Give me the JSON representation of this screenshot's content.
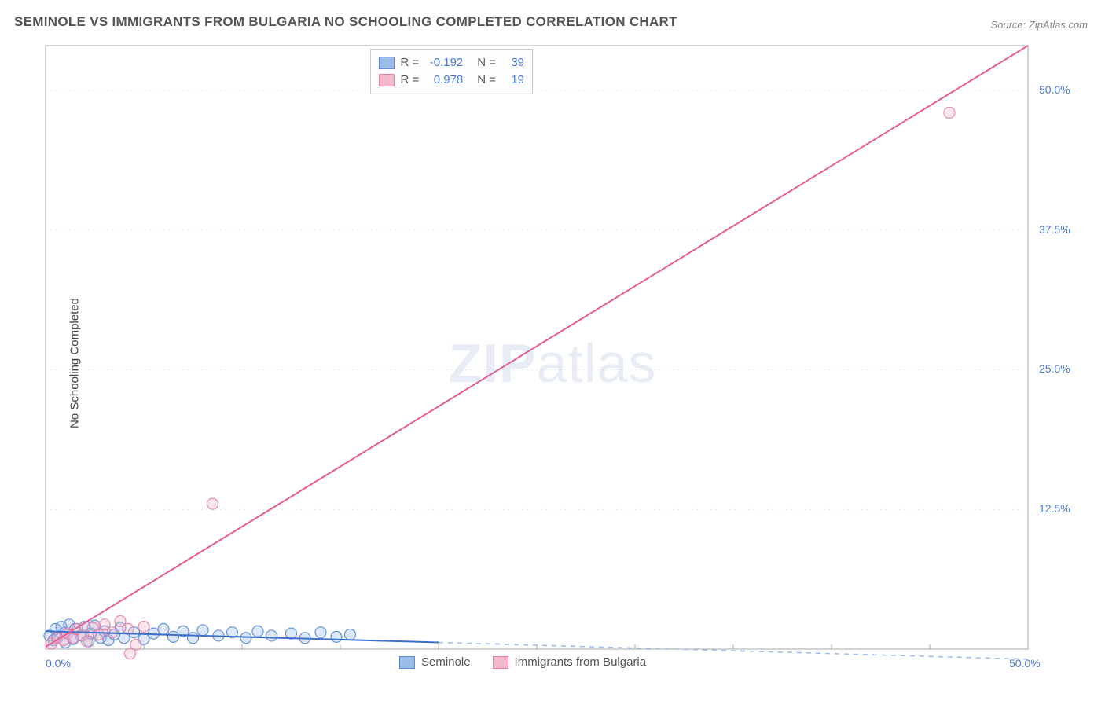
{
  "title": "SEMINOLE VS IMMIGRANTS FROM BULGARIA NO SCHOOLING COMPLETED CORRELATION CHART",
  "source": "Source: ZipAtlas.com",
  "ylabel": "No Schooling Completed",
  "watermark_a": "ZIP",
  "watermark_b": "atlas",
  "chart": {
    "type": "scatter-correlation",
    "background_color": "#ffffff",
    "border_color": "#aaaaaa",
    "grid_color": "#e8e8e8",
    "grid_dash": "2 4",
    "axis_label_color": "#4a7bd0",
    "xlim": [
      0,
      50
    ],
    "ylim": [
      0,
      54
    ],
    "x_ticks": [
      0,
      50
    ],
    "x_tick_labels": [
      "0.0%",
      "50.0%"
    ],
    "x_minor_ticks": [
      5,
      10,
      15,
      20,
      25,
      30,
      35,
      40,
      45
    ],
    "y_ticks": [
      12.5,
      25.0,
      37.5,
      50.0
    ],
    "y_tick_labels": [
      "12.5%",
      "25.0%",
      "37.5%",
      "50.0%"
    ],
    "marker_radius": 7,
    "marker_opacity": 0.35,
    "line_width": 2,
    "series": [
      {
        "name": "Seminole",
        "fill_color": "#9bbce8",
        "stroke_color": "#5a8ad4",
        "line_color": "#3b6fc9",
        "R": "-0.192",
        "N": "39",
        "trend": {
          "x1": 0,
          "y1": 1.6,
          "x2": 20,
          "y2": 0.6,
          "extend_to_x": 50,
          "extend_dash": "6 6",
          "extend_color": "#9bbce8"
        },
        "points": [
          [
            0.2,
            1.2
          ],
          [
            0.4,
            0.8
          ],
          [
            0.5,
            1.8
          ],
          [
            0.6,
            1.0
          ],
          [
            0.8,
            2.0
          ],
          [
            1.0,
            0.6
          ],
          [
            1.0,
            1.5
          ],
          [
            1.2,
            2.2
          ],
          [
            1.4,
            0.9
          ],
          [
            1.5,
            1.8
          ],
          [
            1.8,
            1.2
          ],
          [
            2.0,
            2.0
          ],
          [
            2.2,
            0.7
          ],
          [
            2.3,
            1.4
          ],
          [
            2.5,
            2.1
          ],
          [
            2.8,
            1.0
          ],
          [
            3.0,
            1.6
          ],
          [
            3.2,
            0.8
          ],
          [
            3.5,
            1.3
          ],
          [
            3.8,
            1.9
          ],
          [
            4.0,
            1.0
          ],
          [
            4.5,
            1.5
          ],
          [
            5.0,
            0.9
          ],
          [
            5.5,
            1.4
          ],
          [
            6.0,
            1.8
          ],
          [
            6.5,
            1.1
          ],
          [
            7.0,
            1.6
          ],
          [
            7.5,
            1.0
          ],
          [
            8.0,
            1.7
          ],
          [
            8.8,
            1.2
          ],
          [
            9.5,
            1.5
          ],
          [
            10.2,
            1.0
          ],
          [
            10.8,
            1.6
          ],
          [
            11.5,
            1.2
          ],
          [
            12.5,
            1.4
          ],
          [
            13.2,
            1.0
          ],
          [
            14.0,
            1.5
          ],
          [
            14.8,
            1.1
          ],
          [
            15.5,
            1.3
          ]
        ]
      },
      {
        "name": "Immigrants from Bulgaria",
        "fill_color": "#f4b8cb",
        "stroke_color": "#e87fa6",
        "line_color": "#e75d92",
        "R": "0.978",
        "N": "19",
        "trend": {
          "x1": 0,
          "y1": 0.2,
          "x2": 50,
          "y2": 54.0
        },
        "points": [
          [
            0.3,
            0.5
          ],
          [
            0.6,
            1.0
          ],
          [
            0.9,
            0.8
          ],
          [
            1.1,
            1.4
          ],
          [
            1.4,
            1.0
          ],
          [
            1.6,
            1.8
          ],
          [
            1.9,
            1.2
          ],
          [
            2.1,
            0.7
          ],
          [
            2.4,
            1.9
          ],
          [
            2.7,
            1.3
          ],
          [
            3.0,
            2.2
          ],
          [
            3.4,
            1.5
          ],
          [
            3.8,
            2.5
          ],
          [
            4.2,
            1.8
          ],
          [
            4.6,
            0.4
          ],
          [
            5.0,
            2.0
          ],
          [
            4.3,
            -0.4
          ],
          [
            8.5,
            13.0
          ],
          [
            46.0,
            48.0
          ]
        ]
      }
    ],
    "legend_bottom": [
      {
        "label": "Seminole",
        "fill": "#9bbce8",
        "stroke": "#5a8ad4"
      },
      {
        "label": "Immigrants from Bulgaria",
        "fill": "#f4b8cb",
        "stroke": "#e87fa6"
      }
    ]
  }
}
